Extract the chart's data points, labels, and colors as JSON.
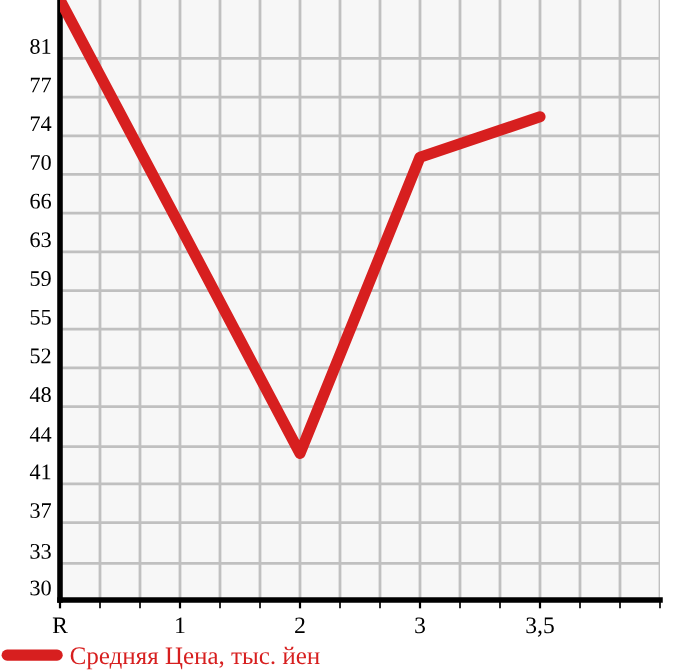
{
  "chart_data": {
    "type": "line",
    "categories": [
      "R",
      "1",
      "2",
      "3",
      "3,5"
    ],
    "series": [
      {
        "name": "Средняя Цена, тыс. йен",
        "color": "#d71f1f",
        "values": [
          86.5,
          65.2,
          43.8,
          71.7,
          75.5
        ]
      }
    ],
    "ylim": [
      30,
      86.5
    ],
    "yticks": [
      30,
      {
        "value": 33.45,
        "label": "33"
      },
      {
        "value": 37.29,
        "label": "37"
      },
      {
        "value": 40.93,
        "label": "41"
      },
      {
        "value": 44.45,
        "label": "44"
      },
      {
        "value": 48.21,
        "label": "48"
      },
      {
        "value": 51.86,
        "label": "52"
      },
      {
        "value": 55.5,
        "label": "55"
      },
      {
        "value": 59.14,
        "label": "59"
      },
      {
        "value": 62.79,
        "label": "63"
      },
      {
        "value": 66.43,
        "label": "66"
      },
      {
        "value": 70.07,
        "label": "70"
      },
      {
        "value": 73.71,
        "label": "74"
      },
      {
        "value": 77.36,
        "label": "77"
      },
      81
    ],
    "grid": true,
    "legend": "bottom left",
    "marker": "none",
    "line_style": "solid"
  }
}
